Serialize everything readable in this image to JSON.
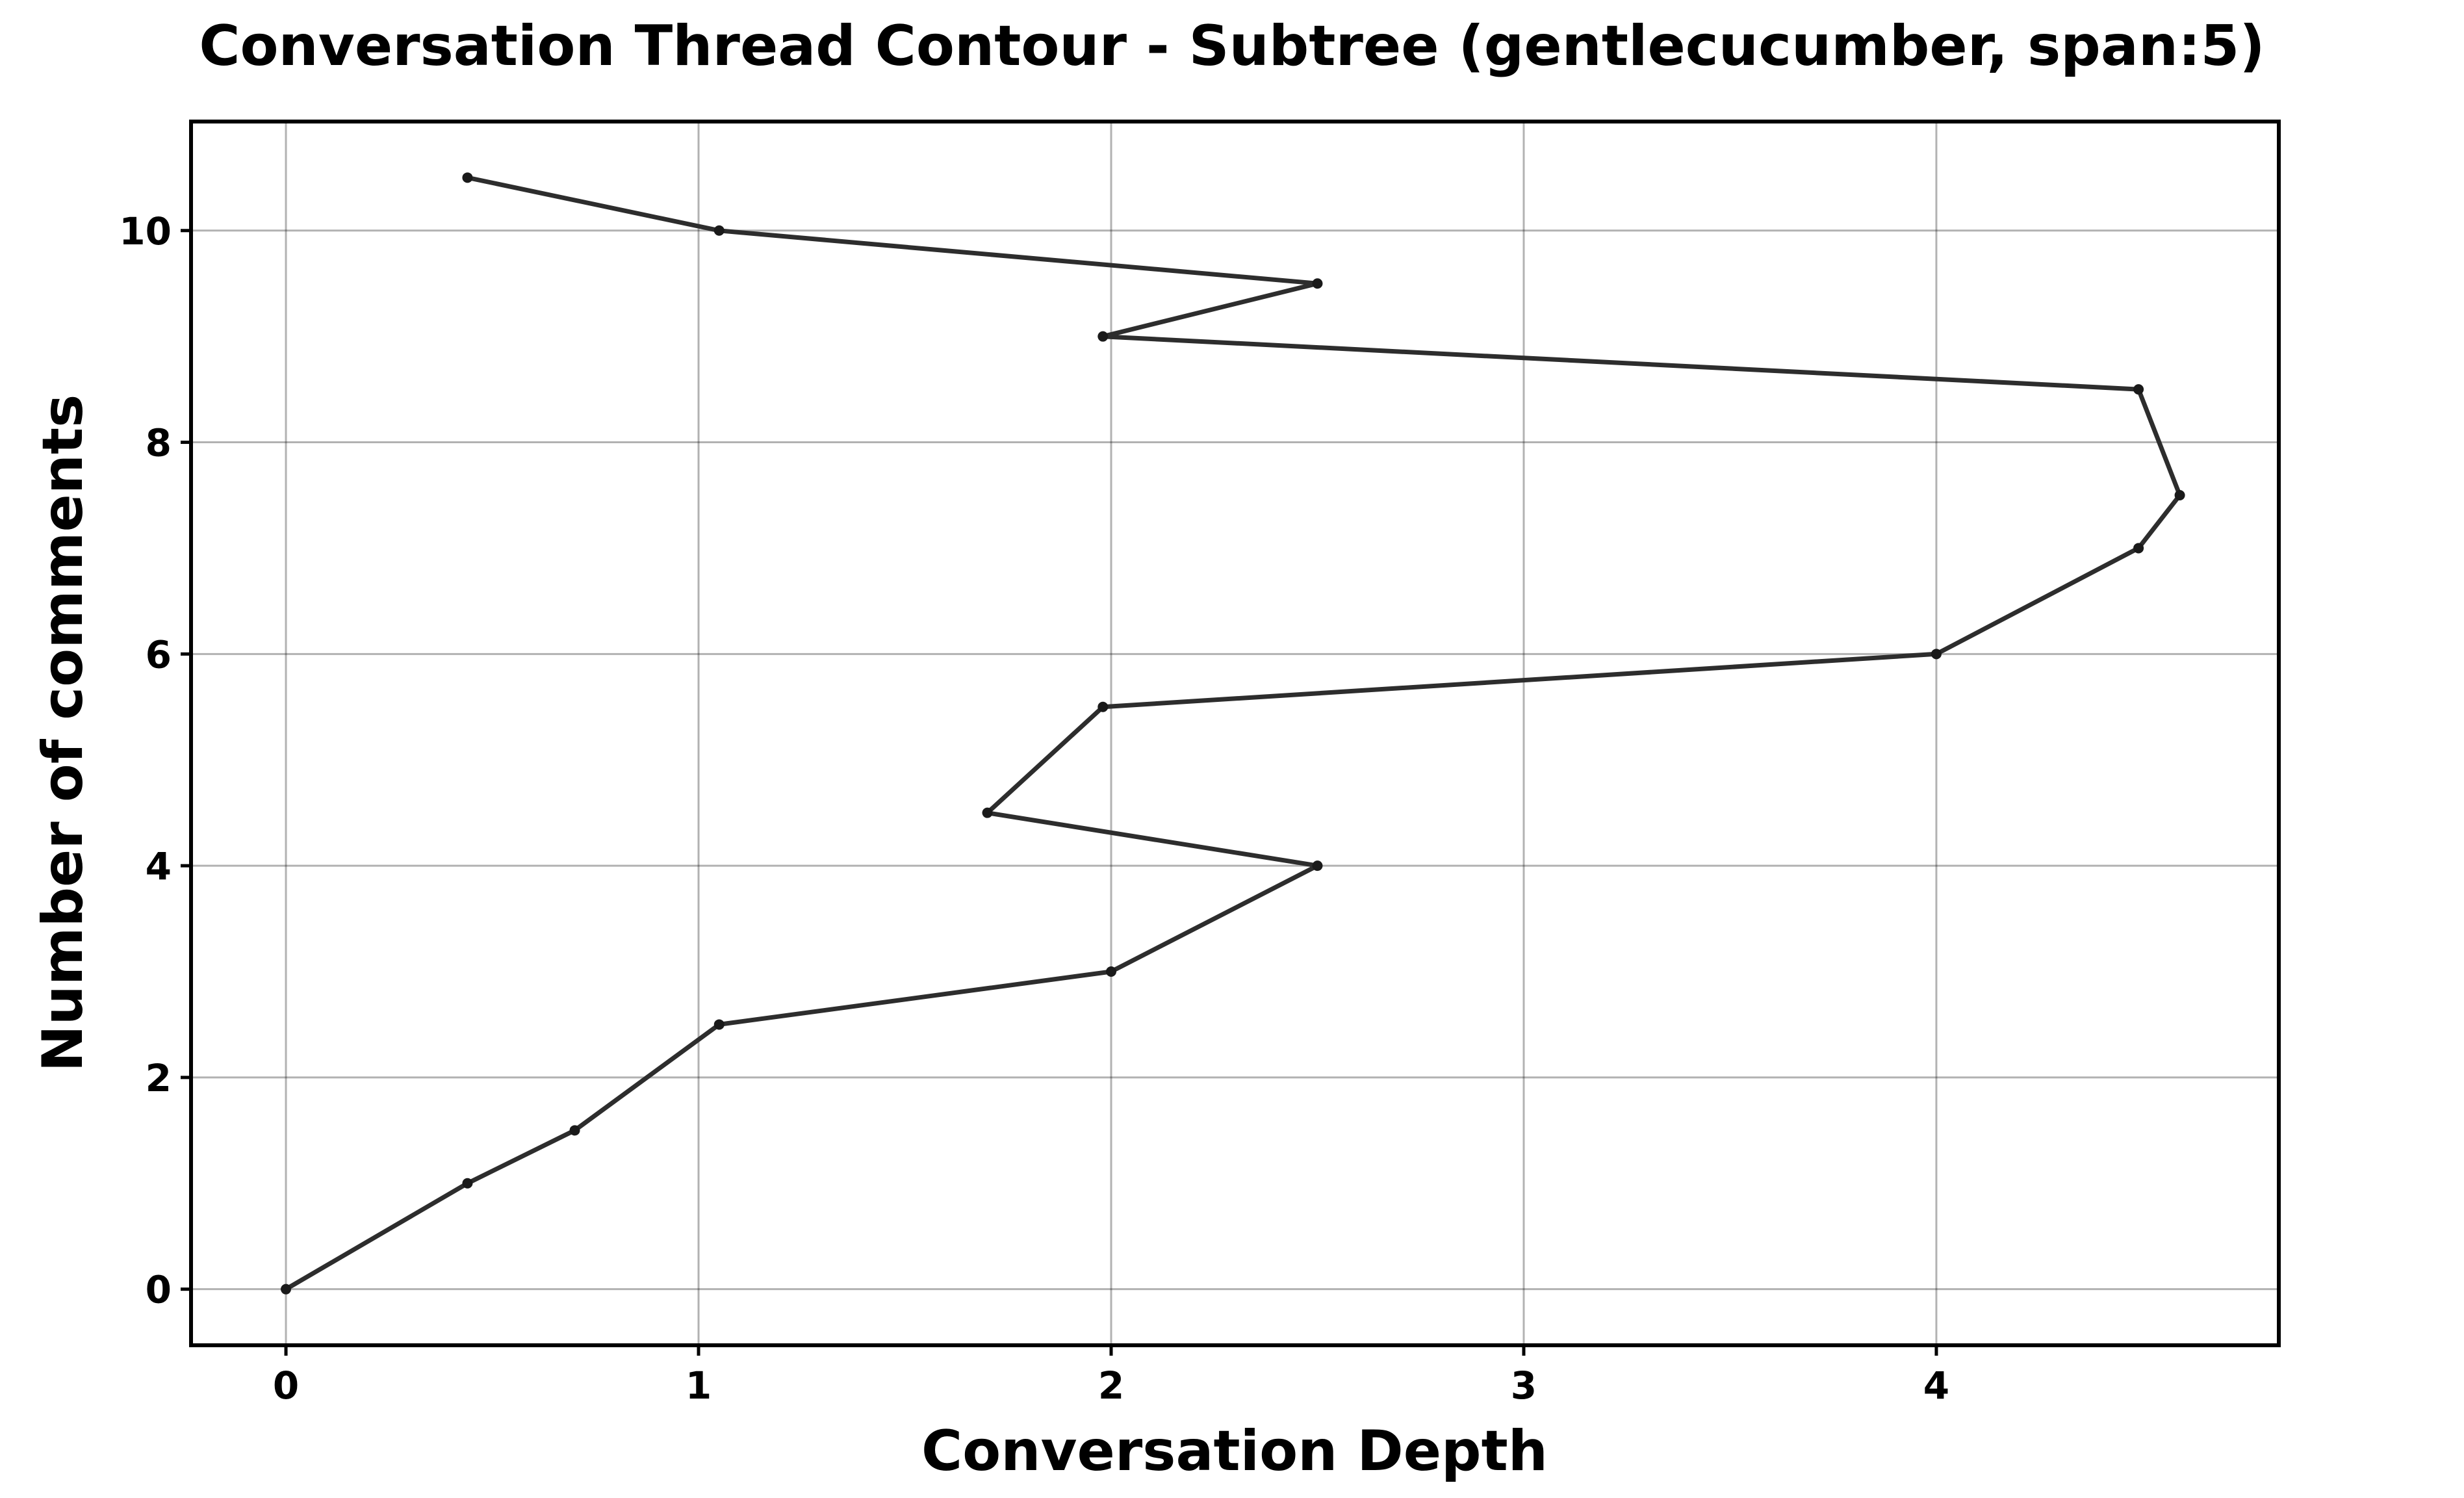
{
  "chart_data": {
    "type": "line",
    "title": "Conversation Thread Contour  - Subtree (gentlecucumber, span:5)",
    "xlabel": "Conversation Depth",
    "ylabel": "Number of comments",
    "xlim": [
      -0.23,
      4.83
    ],
    "ylim": [
      -0.53,
      11.03
    ],
    "xticks": [
      0,
      1,
      2,
      3,
      4
    ],
    "yticks": [
      0,
      2,
      4,
      6,
      8,
      10
    ],
    "grid": true,
    "series": [
      {
        "x": [
          0,
          0.44,
          0.7,
          1.05,
          2.0,
          2.5,
          1.7,
          1.98,
          4.0,
          4.49,
          4.59,
          4.49,
          1.98,
          2.5,
          1.05,
          0.44
        ],
        "y": [
          0,
          1,
          1.5,
          2.5,
          3,
          4,
          4.5,
          5.5,
          6,
          7,
          7.5,
          8.5,
          9,
          9.5,
          10,
          10.5
        ],
        "color": "#2d2d2d"
      }
    ]
  }
}
